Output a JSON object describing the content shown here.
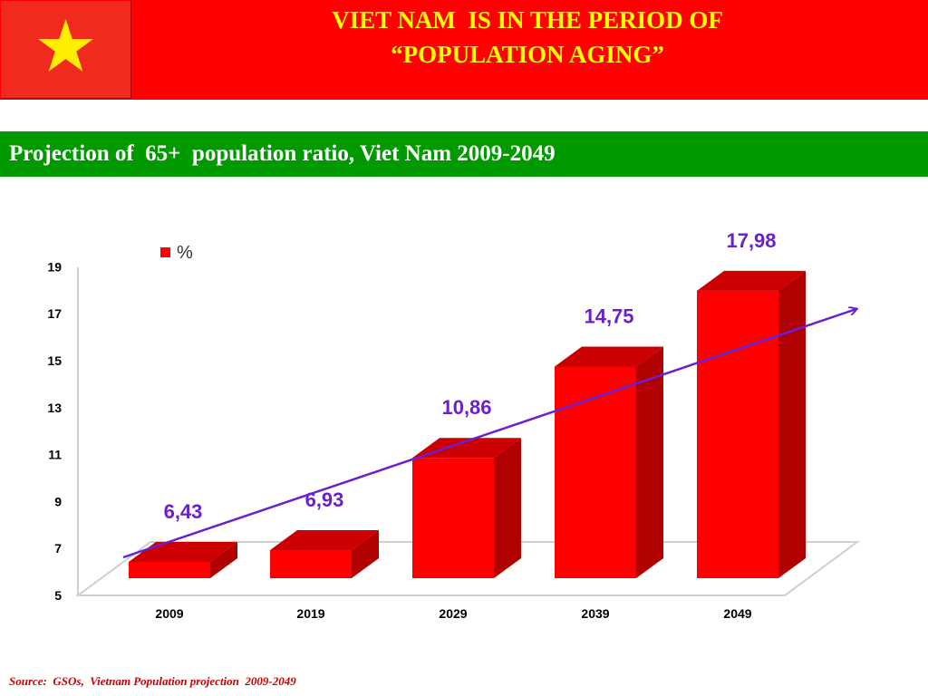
{
  "header": {
    "title_line1": "VIET NAM  IS IN THE PERIOD OF",
    "title_line2": "“POPULATION AGING”",
    "flag_icon": "vietnam-flag-star-icon"
  },
  "subtitle": "Projection of  65+  population ratio, Viet Nam 2009-2049",
  "source": "Source:  GSOs,  Vietnam Population projection  2009-2049",
  "colors": {
    "header_bg": "#ff0000",
    "title_text": "#ffff00",
    "subtitle_bg": "#009a00",
    "bar_front": "#ff0000",
    "bar_side": "#b00000",
    "bar_top": "#cc0000",
    "value_label": "#6a1fd0",
    "trend_arrow": "#6a1fd0",
    "source_text": "#cc0000"
  },
  "chart_data": {
    "type": "bar",
    "categories": [
      "2009",
      "2019",
      "2029",
      "2039",
      "2049"
    ],
    "series": [
      {
        "name": "%",
        "values": [
          6.43,
          6.93,
          10.86,
          14.75,
          17.98
        ]
      }
    ],
    "data_labels": [
      "6,43",
      "6,93",
      "10,86",
      "14,75",
      "17,98"
    ],
    "yticks": [
      "5",
      "7",
      "9",
      "11",
      "13",
      "15",
      "17",
      "19"
    ],
    "ylim": [
      5,
      19
    ],
    "legend": {
      "label": "%",
      "position": "top-left"
    },
    "trend_line": true,
    "three_d": true,
    "grid": false
  }
}
